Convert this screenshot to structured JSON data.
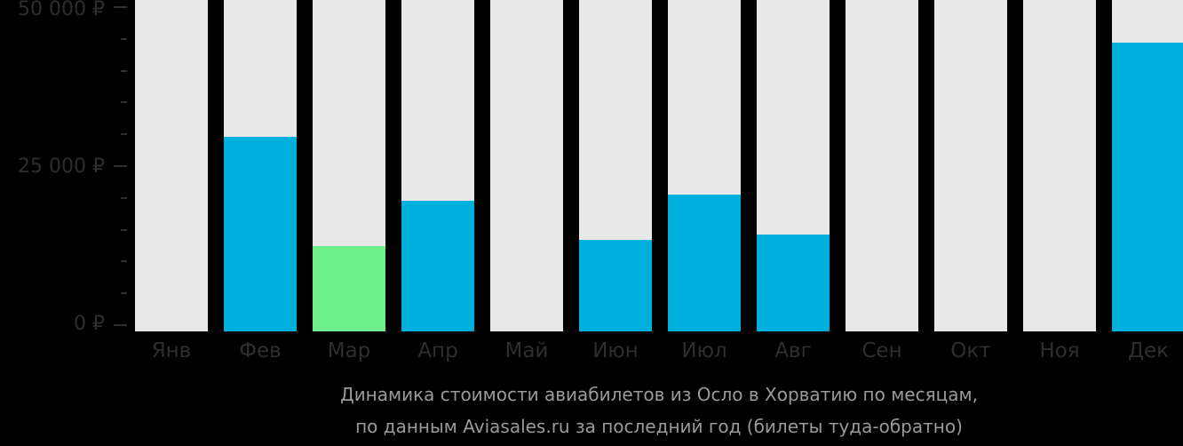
{
  "chart_data": {
    "type": "bar",
    "title": "Динамика стоимости авиабилетов из Осло в Хорватию по месяцам, по данным Aviasales.ru за последний год (билеты туда-обратно)",
    "xlabel": "",
    "ylabel": "",
    "ylim": [
      0,
      50000
    ],
    "yticks": [
      "50 000 ₽",
      "25 000 ₽",
      "0 ₽"
    ],
    "categories": [
      "Янв",
      "Фев",
      "Мар",
      "Апр",
      "Май",
      "Июн",
      "Июл",
      "Авг",
      "Сен",
      "Окт",
      "Ноя",
      "Дек"
    ],
    "values": [
      null,
      29750,
      12570,
      19690,
      null,
      13550,
      20670,
      14390,
      null,
      null,
      null,
      44550
    ],
    "colors": {
      "default": "#00b0dc",
      "lowest": "#6ef08a",
      "background": "#e8e8e8"
    },
    "lowest_month": "Мар",
    "grid": false,
    "legend": "none"
  },
  "caption": {
    "line1": "Динамика стоимости авиабилетов из Осло в Хорватию по месяцам,",
    "line2": "по данным Aviasales.ru за последний год (билеты туда-обратно)"
  }
}
